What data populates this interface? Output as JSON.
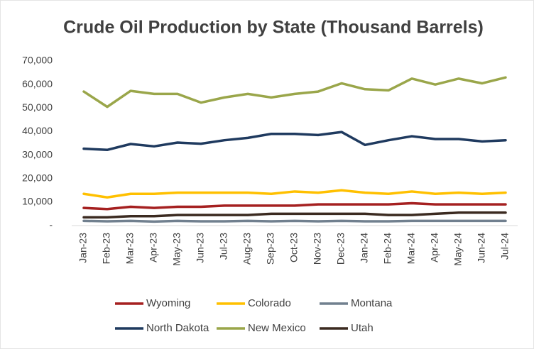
{
  "chart_data": {
    "type": "line",
    "title": "Crude Oil Production by State (Thousand Barrels)",
    "categories": [
      "Jan-23",
      "Feb-23",
      "Mar-23",
      "Apr-23",
      "May-23",
      "Jun-23",
      "Jul-23",
      "Aug-23",
      "Sep-23",
      "Oct-23",
      "Nov-23",
      "Dec-23",
      "Jan-24",
      "Feb-24",
      "Mar-24",
      "Apr-24",
      "May-24",
      "Jun-24",
      "Jul-24"
    ],
    "series": [
      {
        "name": "Wyoming",
        "color": "#a52020",
        "values": [
          7500,
          7000,
          8000,
          7500,
          8000,
          8000,
          8500,
          8500,
          8500,
          8500,
          9000,
          9000,
          9000,
          9000,
          9500,
          9000,
          9000,
          9000,
          9000
        ]
      },
      {
        "name": "Colorado",
        "color": "#ffc000",
        "values": [
          13500,
          12000,
          13500,
          13500,
          14000,
          14000,
          14000,
          14000,
          13500,
          14500,
          14000,
          15000,
          14000,
          13500,
          14500,
          13500,
          14000,
          13500,
          14000
        ]
      },
      {
        "name": "Montana",
        "color": "#71808f",
        "values": [
          2000,
          1800,
          2000,
          1700,
          2000,
          1800,
          1800,
          2000,
          1800,
          2000,
          1800,
          2000,
          1800,
          1800,
          2000,
          2000,
          2000,
          2000,
          2000
        ]
      },
      {
        "name": "North Dakota",
        "color": "#1f3a5f",
        "values": [
          32700,
          32200,
          34700,
          33700,
          35300,
          34800,
          36300,
          37300,
          39000,
          39000,
          38500,
          39800,
          34300,
          36300,
          38000,
          36800,
          36800,
          35800,
          36300
        ]
      },
      {
        "name": "New Mexico",
        "color": "#9aa64a",
        "values": [
          57000,
          50500,
          57300,
          56000,
          56000,
          52300,
          54500,
          56000,
          54500,
          56000,
          57000,
          60500,
          58000,
          57500,
          62500,
          60000,
          62500,
          60500,
          63000
        ]
      },
      {
        "name": "Utah",
        "color": "#3b2a20",
        "values": [
          3500,
          3500,
          4000,
          4000,
          4500,
          4500,
          4500,
          4500,
          5000,
          5000,
          5000,
          5000,
          5000,
          4500,
          4500,
          5000,
          5500,
          5500,
          5500
        ]
      }
    ],
    "ylim": [
      0,
      70000
    ],
    "yticks": [
      {
        "value": 0,
        "label": "-"
      },
      {
        "value": 10000,
        "label": "10,000"
      },
      {
        "value": 20000,
        "label": "20,000"
      },
      {
        "value": 30000,
        "label": "30,000"
      },
      {
        "value": 40000,
        "label": "40,000"
      },
      {
        "value": 50000,
        "label": "50,000"
      },
      {
        "value": 60000,
        "label": "60,000"
      },
      {
        "value": 70000,
        "label": "70,000"
      }
    ],
    "grid": false
  }
}
